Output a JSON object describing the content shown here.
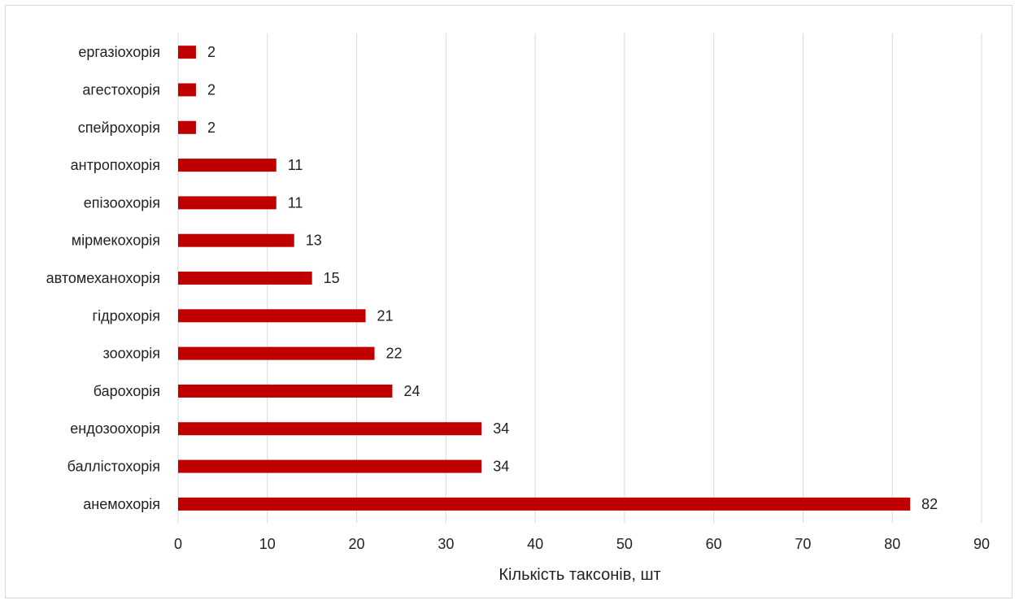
{
  "chart_data": {
    "type": "bar",
    "orientation": "horizontal",
    "categories": [
      "анемохорія",
      "баллістохорія",
      "ендозоохорія",
      "барохорія",
      "зоохорія",
      "гідрохорія",
      "автомеханохорія",
      "мірмекохорія",
      "епізоохорія",
      "антропохорія",
      "спейрохорія",
      "агестохорія",
      "ергазіохорія"
    ],
    "values": [
      82,
      34,
      34,
      24,
      22,
      21,
      15,
      13,
      11,
      11,
      2,
      2,
      2
    ],
    "xlabel": "Кількість таксонів, шт",
    "ylabel": "",
    "xlim": [
      0,
      90
    ],
    "xticks": [
      0,
      10,
      20,
      30,
      40,
      50,
      60,
      70,
      80,
      90
    ],
    "grid": "vertical",
    "legend": "none",
    "data_labels": true,
    "bar_color": "#c00000"
  }
}
